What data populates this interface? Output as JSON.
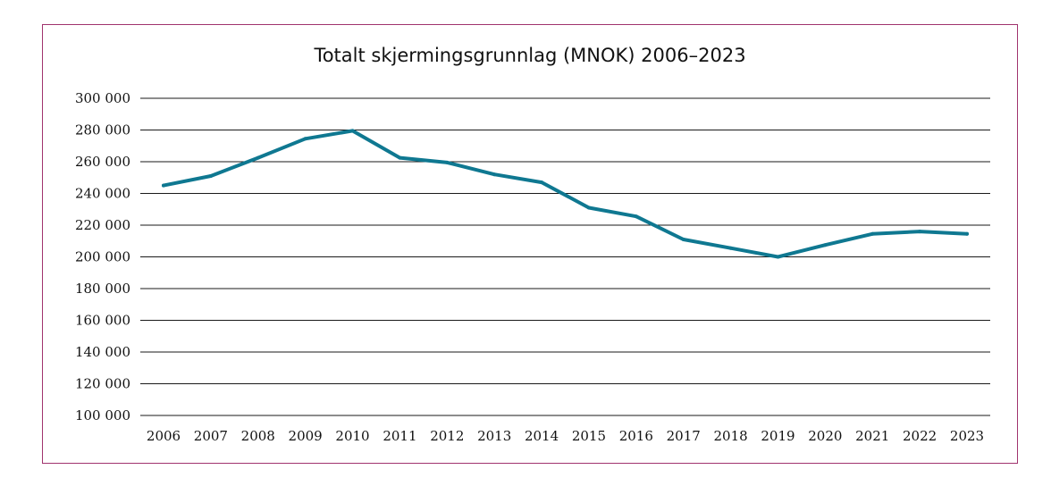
{
  "colors": {
    "frame": "#a0336e",
    "line": "#0f7891",
    "grid": "#1a1a1a",
    "text": "#111111"
  },
  "chart_data": {
    "type": "line",
    "title": "Totalt skjermingsgrunnlag (MNOK) 2006–2023",
    "xlabel": "",
    "ylabel": "",
    "categories": [
      "2006",
      "2007",
      "2008",
      "2009",
      "2010",
      "2011",
      "2012",
      "2013",
      "2014",
      "2015",
      "2016",
      "2017",
      "2018",
      "2019",
      "2020",
      "2021",
      "2022",
      "2023"
    ],
    "series": [
      {
        "values": [
          245000,
          251000,
          262500,
          274500,
          279500,
          262500,
          259500,
          252000,
          247000,
          231000,
          225500,
          211000,
          205500,
          200000,
          207500,
          214500,
          216000,
          214500
        ]
      }
    ],
    "ylim": [
      100000,
      300000
    ],
    "yticks": [
      100000,
      120000,
      140000,
      160000,
      180000,
      200000,
      220000,
      240000,
      260000,
      280000,
      300000
    ],
    "ytick_labels": [
      "100 000",
      "120 000",
      "140 000",
      "160 000",
      "180 000",
      "200 000",
      "220 000",
      "240 000",
      "260 000",
      "280 000",
      "300 000"
    ],
    "grid": true,
    "legend": "none"
  }
}
